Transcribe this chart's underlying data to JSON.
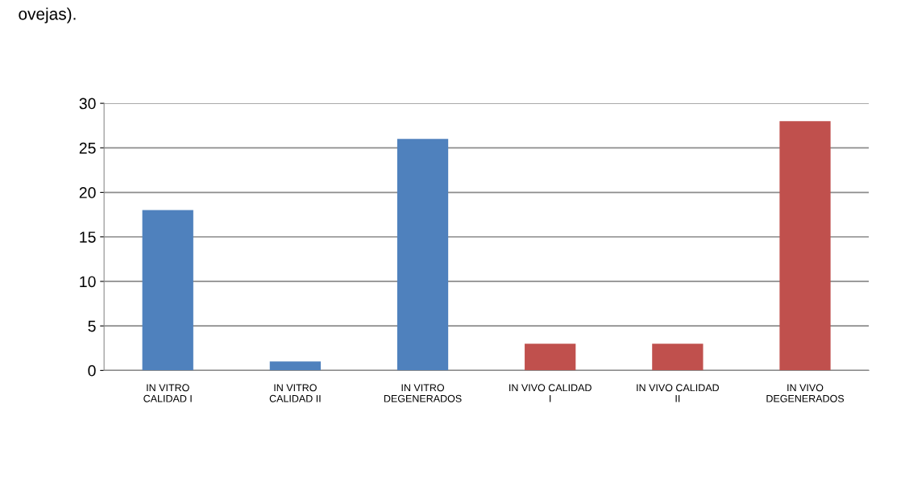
{
  "chart_data": {
    "type": "bar",
    "categories": [
      "IN VITRO\nCALIDAD I",
      "IN VITRO\nCALIDAD II",
      "IN VITRO\nDEGENERADOS",
      "IN VIVO CALIDAD\nI",
      "IN VIVO CALIDAD\nII",
      "IN VIVO\nDEGENERADOS"
    ],
    "values": [
      18,
      1,
      26,
      3,
      3,
      28
    ],
    "colors": [
      "#4f81bd",
      "#4f81bd",
      "#4f81bd",
      "#c0504d",
      "#c0504d",
      "#c0504d"
    ],
    "ylim": [
      0,
      30
    ],
    "yticks": [
      0,
      5,
      10,
      15,
      20,
      25,
      30
    ],
    "grid": "y",
    "annotations": [
      "ovejas)."
    ]
  }
}
